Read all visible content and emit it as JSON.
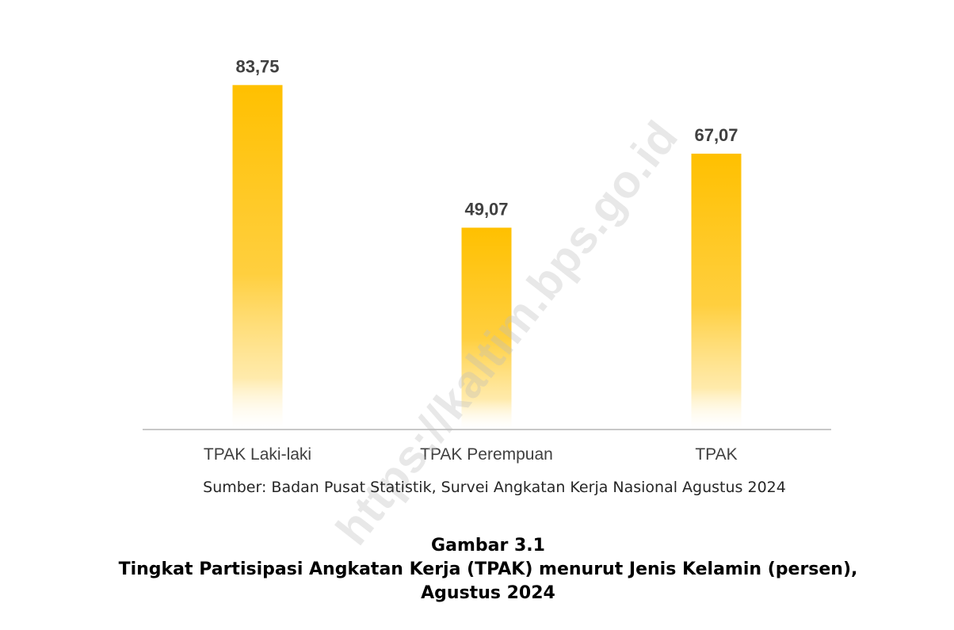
{
  "chart_data": {
    "type": "bar",
    "categories": [
      "TPAK Laki-laki",
      "TPAK Perempuan",
      "TPAK"
    ],
    "values": [
      83.75,
      49.07,
      67.07
    ],
    "value_labels": [
      "83,75",
      "49,07",
      "67,07"
    ],
    "title": "",
    "xlabel": "",
    "ylabel": "",
    "ylim": [
      0,
      100
    ],
    "grid": false,
    "legend": "none",
    "bar_color": "#FFC000"
  },
  "source_text": "Sumber: Badan Pusat Statistik, Survei Angkatan Kerja Nasional Agustus 2024",
  "caption": {
    "line1": "Gambar 3.1",
    "line2": "Tingkat Partisipasi Angkatan Kerja (TPAK) menurut Jenis Kelamin (persen),",
    "line3": "Agustus 2024"
  },
  "watermark": "https://kaltim.bps.go.id"
}
